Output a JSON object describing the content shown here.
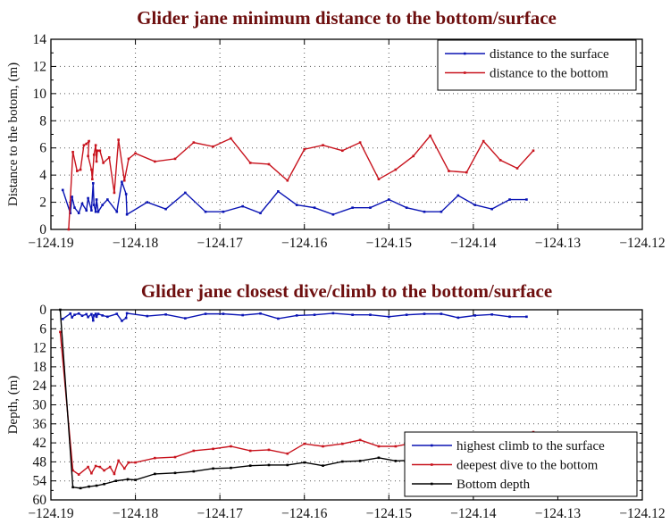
{
  "chart_data": [
    {
      "type": "line",
      "title": "Glider jane minimum distance to the bottom/surface",
      "xlabel": "",
      "ylabel": "Distance to the botom, (m)",
      "xlim": [
        -124.19,
        -124.12
      ],
      "ylim": [
        0,
        14
      ],
      "xticks": [
        "-124.19",
        "-124.18",
        "-124.17",
        "-124.16",
        "-124.15",
        "-124.14",
        "-124.13",
        "-124.12"
      ],
      "yticks": [
        "0",
        "2",
        "4",
        "6",
        "8",
        "10",
        "12",
        "14"
      ],
      "grid": true,
      "legend": "top-right",
      "y_reversed": false,
      "series": [
        {
          "name": "distance to the surface",
          "color": "#0a14b4",
          "x": [
            -124.1886,
            -124.1877,
            -124.1875,
            -124.1872,
            -124.1867,
            -124.1863,
            -124.1858,
            -124.1856,
            -124.1852,
            -124.185,
            -124.1849,
            -124.1847,
            -124.1846,
            -124.1844,
            -124.1839,
            -124.1833,
            -124.1822,
            -124.1816,
            -124.1811,
            -124.181,
            -124.1786,
            -124.1764,
            -124.1741,
            -124.1717,
            -124.1696,
            -124.1673,
            -124.1652,
            -124.1631,
            -124.1609,
            -124.1588,
            -124.1566,
            -124.1543,
            -124.1522,
            -124.15,
            -124.1479,
            -124.1458,
            -124.1438,
            -124.1418,
            -124.1398,
            -124.1378,
            -124.1357,
            -124.1337
          ],
          "y": [
            2.9,
            1.2,
            2.4,
            1.6,
            1.2,
            1.9,
            1.4,
            2.3,
            1.4,
            3.4,
            1.8,
            1.3,
            2.2,
            1.3,
            1.8,
            2.2,
            1.3,
            3.5,
            2.6,
            1.1,
            2.0,
            1.5,
            2.7,
            1.3,
            1.3,
            1.7,
            1.2,
            2.8,
            1.8,
            1.6,
            1.1,
            1.6,
            1.6,
            2.2,
            1.6,
            1.3,
            1.3,
            2.5,
            1.8,
            1.5,
            2.2,
            2.2
          ]
        },
        {
          "name": "distance to the bottom",
          "color": "#c8141e",
          "x": [
            -124.1879,
            -124.1874,
            -124.1869,
            -124.1865,
            -124.1861,
            -124.1858,
            -124.1855,
            -124.1856,
            -124.1852,
            -124.1851,
            -124.1849,
            -124.1847,
            -124.1846,
            -124.1845,
            -124.1842,
            -124.1838,
            -124.1831,
            -124.1825,
            -124.182,
            -124.1813,
            -124.1808,
            -124.18,
            -124.1777,
            -124.1753,
            -124.1731,
            -124.1708,
            -124.1687,
            -124.1664,
            -124.1642,
            -124.162,
            -124.16,
            -124.1578,
            -124.1555,
            -124.1534,
            -124.1512,
            -124.1492,
            -124.1471,
            -124.1451,
            -124.1429,
            -124.1408,
            -124.1388,
            -124.1368,
            -124.1348,
            -124.1329
          ],
          "y": [
            0,
            5.7,
            4.3,
            4.4,
            6.2,
            6.3,
            6.5,
            5.4,
            4.4,
            3.7,
            5.5,
            6.2,
            5.0,
            5.8,
            5.8,
            4.9,
            5.3,
            2.7,
            6.6,
            3.6,
            5.2,
            5.6,
            5.0,
            5.2,
            6.4,
            6.1,
            6.7,
            4.9,
            4.8,
            3.6,
            5.9,
            6.2,
            5.8,
            6.4,
            3.7,
            4.4,
            5.4,
            6.9,
            4.3,
            4.2,
            6.5,
            5.1,
            4.5,
            5.8
          ]
        }
      ],
      "legend_entries": [
        "distance to the surface",
        "distance to the bottom"
      ]
    },
    {
      "type": "line",
      "title": "Glider jane closest dive/climb to the bottom/surface",
      "xlabel": "",
      "ylabel": "Depth, (m)",
      "xlim": [
        -124.19,
        -124.12
      ],
      "ylim": [
        0,
        60
      ],
      "y_reversed": true,
      "xticks": [
        "-124.19",
        "-124.18",
        "-124.17",
        "-124.16",
        "-124.15",
        "-124.14",
        "-124.13",
        "-124.12"
      ],
      "yticks": [
        "0",
        "6",
        "12",
        "18",
        "24",
        "30",
        "36",
        "42",
        "48",
        "54",
        "60"
      ],
      "grid": true,
      "legend": "bottom-right",
      "series": [
        {
          "name": "highest climb to the surface",
          "color": "#0a14b4",
          "x": [
            -124.1886,
            -124.1877,
            -124.1875,
            -124.1872,
            -124.1867,
            -124.1863,
            -124.1858,
            -124.1856,
            -124.1852,
            -124.185,
            -124.1849,
            -124.1847,
            -124.1846,
            -124.1844,
            -124.1839,
            -124.1833,
            -124.1822,
            -124.1816,
            -124.1811,
            -124.181,
            -124.1786,
            -124.1764,
            -124.1741,
            -124.1717,
            -124.1696,
            -124.1673,
            -124.1652,
            -124.1631,
            -124.1609,
            -124.1588,
            -124.1566,
            -124.1543,
            -124.1522,
            -124.15,
            -124.1479,
            -124.1458,
            -124.1438,
            -124.1418,
            -124.1398,
            -124.1378,
            -124.1357,
            -124.1337
          ],
          "y": [
            2.9,
            1.2,
            2.4,
            1.6,
            1.2,
            1.9,
            1.4,
            2.3,
            1.4,
            3.4,
            1.8,
            1.3,
            2.2,
            1.3,
            1.8,
            2.2,
            1.3,
            3.5,
            2.6,
            1.1,
            2.0,
            1.5,
            2.7,
            1.3,
            1.3,
            1.7,
            1.2,
            2.8,
            1.8,
            1.6,
            1.1,
            1.6,
            1.6,
            2.2,
            1.6,
            1.3,
            1.3,
            2.5,
            1.8,
            1.5,
            2.2,
            2.2
          ]
        },
        {
          "name": "deepest dive to the bottom",
          "color": "#c8141e",
          "x": [
            -124.1889,
            -124.1874,
            -124.1867,
            -124.1856,
            -124.1852,
            -124.1847,
            -124.1842,
            -124.1837,
            -124.183,
            -124.1825,
            -124.182,
            -124.1813,
            -124.1808,
            -124.18,
            -124.1777,
            -124.1753,
            -124.1731,
            -124.1708,
            -124.1687,
            -124.1664,
            -124.1642,
            -124.162,
            -124.16,
            -124.1578,
            -124.1555,
            -124.1534,
            -124.1512,
            -124.1492,
            -124.1471,
            -124.1451,
            -124.1429,
            -124.1408,
            -124.1388,
            -124.1368,
            -124.1348,
            -124.1329
          ],
          "y": [
            7,
            50.7,
            52,
            49.6,
            51.6,
            49.3,
            49.6,
            50.7,
            49.6,
            51.8,
            47.6,
            50.1,
            48.2,
            48.2,
            46.8,
            46.5,
            44.5,
            43.9,
            43.1,
            44.5,
            44.2,
            45.4,
            42.3,
            43.1,
            42.3,
            41.1,
            43.1,
            43.1,
            42,
            41,
            43.5,
            43.8,
            41,
            42.5,
            43.5,
            38.6
          ]
        },
        {
          "name": "Bottom depth",
          "color": "#000000",
          "x": [
            -124.1889,
            -124.1874,
            -124.1865,
            -124.1855,
            -124.1846,
            -124.1837,
            -124.1823,
            -124.1809,
            -124.18,
            -124.1777,
            -124.1753,
            -124.1731,
            -124.1708,
            -124.1687,
            -124.1664,
            -124.1642,
            -124.162,
            -124.16,
            -124.1578,
            -124.1555,
            -124.1534,
            -124.1512,
            -124.1492,
            -124.1471,
            -124.1451,
            -124.1429,
            -124.1408,
            -124.1388,
            -124.1368,
            -124.1348,
            -124.1329
          ],
          "y": [
            0,
            56,
            56.3,
            55.8,
            55.5,
            55,
            54,
            53.5,
            53.7,
            51.8,
            51.5,
            51,
            50.1,
            49.9,
            49.2,
            49,
            49,
            48.2,
            49.2,
            47.9,
            47.7,
            46.7,
            47.7,
            47.5,
            48,
            47.3,
            47,
            47.5,
            47.2,
            48.5,
            44.4
          ]
        }
      ],
      "legend_entries": [
        "highest climb to the surface",
        "deepest dive to the bottom",
        "Bottom depth"
      ]
    }
  ]
}
